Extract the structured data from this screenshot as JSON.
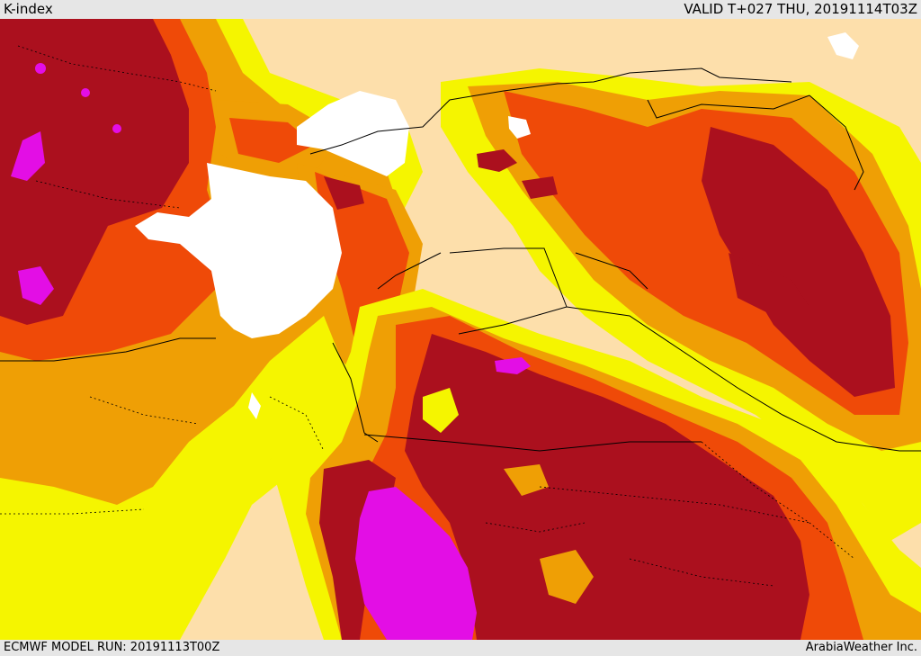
{
  "header": {
    "title": "K-index",
    "valid": "VALID T+027 THU, 20191114T03Z"
  },
  "footer": {
    "model_run": "ECMWF MODEL RUN: 20191113T00Z",
    "credit": "ArabiaWeather Inc."
  },
  "colors": {
    "land_base": "#fddfab",
    "low": "#f5f500",
    "moderate": "#ef9f05",
    "high": "#ef4a08",
    "very_high": "#ab101e",
    "extreme": "#e30ee5",
    "sea": "#ffffff",
    "border": "#000000",
    "bars": "#e6e6e6"
  }
}
